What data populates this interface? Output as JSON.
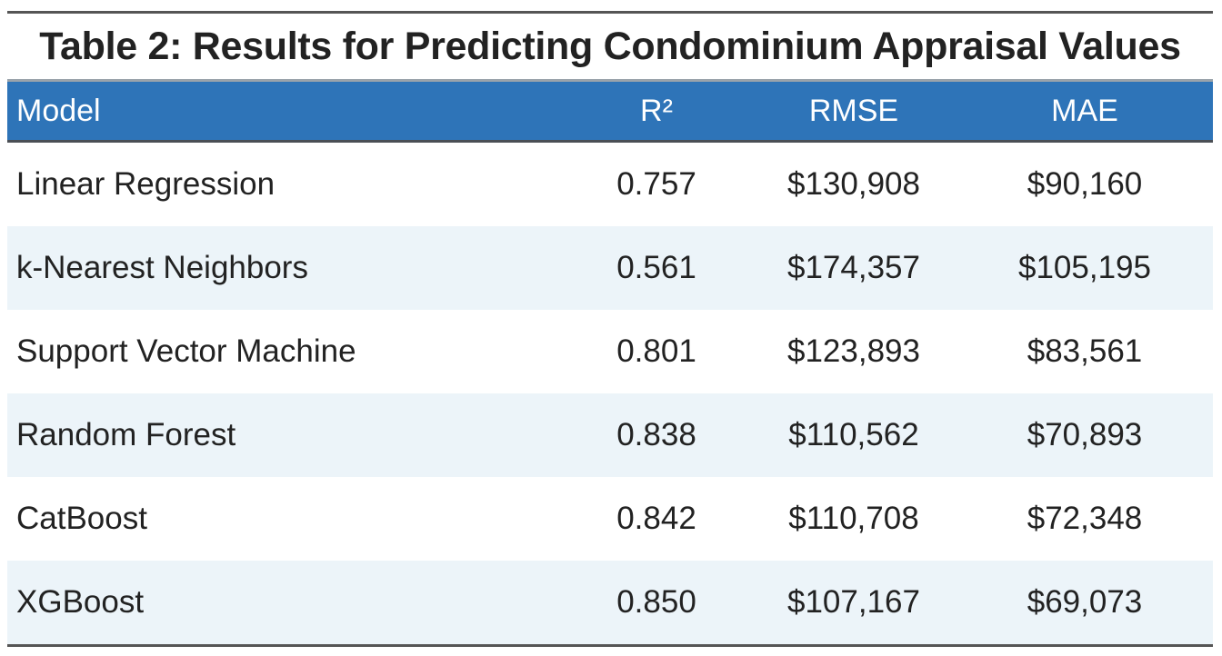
{
  "caption": "Table 2: Results for Predicting Condominium Appraisal Values",
  "headers": {
    "model": "Model",
    "r2": "R²",
    "rmse": "RMSE",
    "mae": "MAE"
  },
  "rows": [
    {
      "model": "Linear Regression",
      "r2": "0.757",
      "rmse": "$130,908",
      "mae": "$90,160"
    },
    {
      "model": "k-Nearest Neighbors",
      "r2": "0.561",
      "rmse": "$174,357",
      "mae": "$105,195"
    },
    {
      "model": "Support Vector Machine",
      "r2": "0.801",
      "rmse": "$123,893",
      "mae": "$83,561"
    },
    {
      "model": "Random Forest",
      "r2": "0.838",
      "rmse": "$110,562",
      "mae": "$70,893"
    },
    {
      "model": "CatBoost",
      "r2": "0.842",
      "rmse": "$110,708",
      "mae": "$72,348"
    },
    {
      "model": "XGBoost",
      "r2": "0.850",
      "rmse": "$107,167",
      "mae": "$69,073"
    }
  ],
  "colors": {
    "header_bg": "#2e74b8",
    "stripe_bg": "#ecf4f9",
    "rule": "#555555"
  }
}
